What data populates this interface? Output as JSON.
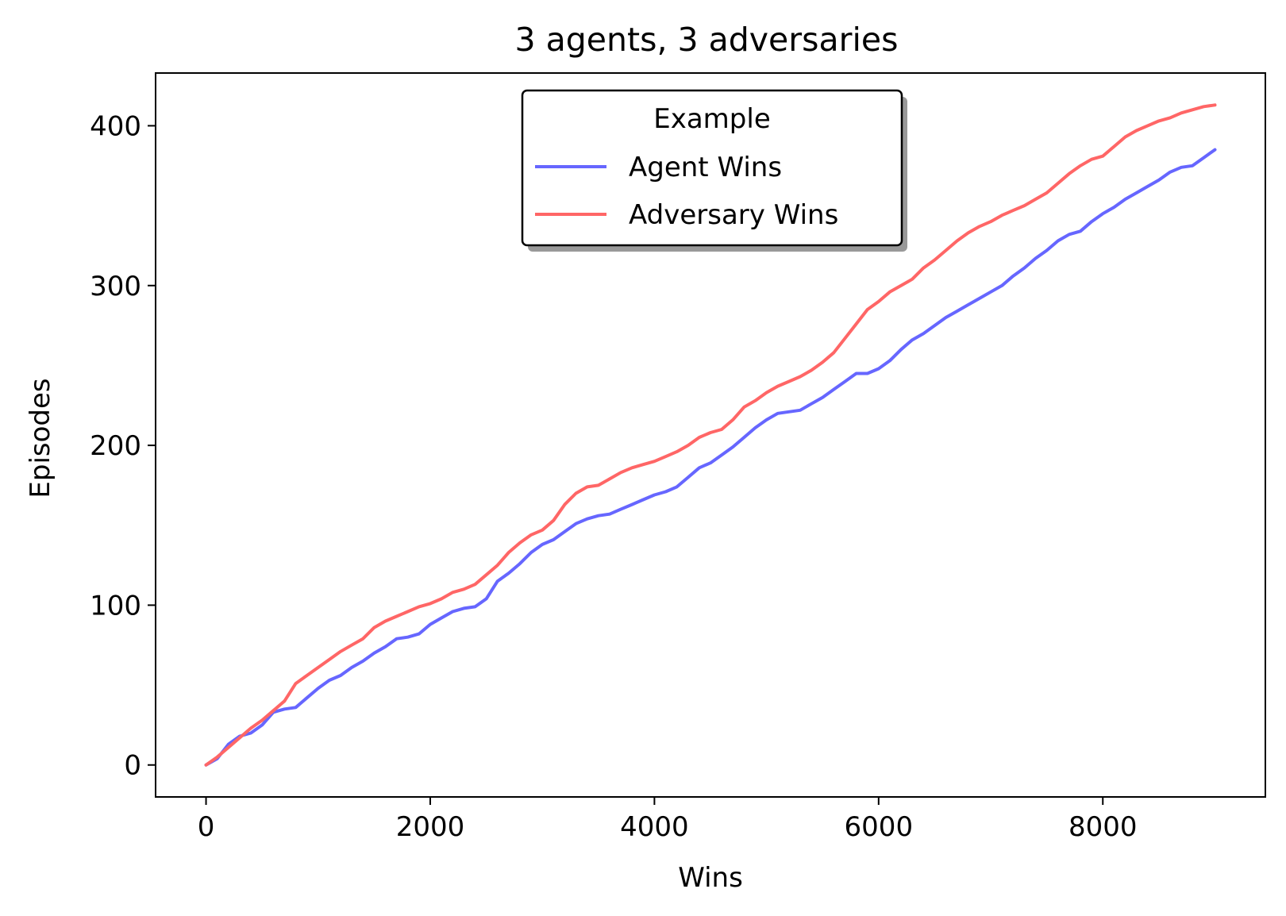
{
  "chart_data": {
    "type": "line",
    "title": "3 agents, 3 adversaries",
    "xlabel": "Wins",
    "ylabel": "Episodes",
    "xlim": [
      -450,
      9450
    ],
    "ylim": [
      -20,
      433
    ],
    "xticks": [
      0,
      2000,
      4000,
      6000,
      8000
    ],
    "yticks": [
      0,
      100,
      200,
      300,
      400
    ],
    "grid": false,
    "legend": {
      "title": "Example",
      "position": "top-center"
    },
    "series": [
      {
        "name": "Agent Wins",
        "color": "#6666ff",
        "x": [
          0,
          100,
          200,
          300,
          400,
          500,
          600,
          700,
          800,
          900,
          1000,
          1100,
          1200,
          1300,
          1400,
          1500,
          1600,
          1700,
          1800,
          1900,
          2000,
          2100,
          2200,
          2300,
          2400,
          2500,
          2600,
          2700,
          2800,
          2900,
          3000,
          3100,
          3200,
          3300,
          3400,
          3500,
          3600,
          3700,
          3800,
          3900,
          4000,
          4100,
          4200,
          4300,
          4400,
          4500,
          4600,
          4700,
          4800,
          4900,
          5000,
          5100,
          5200,
          5300,
          5400,
          5500,
          5600,
          5700,
          5800,
          5900,
          6000,
          6100,
          6200,
          6300,
          6400,
          6500,
          6600,
          6700,
          6800,
          6900,
          7000,
          7100,
          7200,
          7300,
          7400,
          7500,
          7600,
          7700,
          7800,
          7900,
          8000,
          8100,
          8200,
          8300,
          8400,
          8500,
          8600,
          8700,
          8800,
          8900,
          9000
        ],
        "values": [
          0,
          4,
          13,
          18,
          20,
          25,
          33,
          35,
          36,
          42,
          48,
          53,
          56,
          61,
          65,
          70,
          74,
          79,
          80,
          82,
          88,
          92,
          96,
          98,
          99,
          104,
          115,
          120,
          126,
          133,
          138,
          141,
          146,
          151,
          154,
          156,
          157,
          160,
          163,
          166,
          169,
          171,
          174,
          180,
          186,
          189,
          194,
          199,
          205,
          211,
          216,
          220,
          221,
          222,
          226,
          230,
          235,
          240,
          245,
          245,
          248,
          253,
          260,
          266,
          270,
          275,
          280,
          284,
          288,
          292,
          296,
          300,
          306,
          311,
          317,
          322,
          328,
          332,
          334,
          340,
          345,
          349,
          354,
          358,
          362,
          366,
          371,
          374,
          375,
          380,
          385
        ]
      },
      {
        "name": "Adversary Wins",
        "color": "#ff6666",
        "x": [
          0,
          100,
          200,
          300,
          400,
          500,
          600,
          700,
          800,
          900,
          1000,
          1100,
          1200,
          1300,
          1400,
          1500,
          1600,
          1700,
          1800,
          1900,
          2000,
          2100,
          2200,
          2300,
          2400,
          2500,
          2600,
          2700,
          2800,
          2900,
          3000,
          3100,
          3200,
          3300,
          3400,
          3500,
          3600,
          3700,
          3800,
          3900,
          4000,
          4100,
          4200,
          4300,
          4400,
          4500,
          4600,
          4700,
          4800,
          4900,
          5000,
          5100,
          5200,
          5300,
          5400,
          5500,
          5600,
          5700,
          5800,
          5900,
          6000,
          6100,
          6200,
          6300,
          6400,
          6500,
          6600,
          6700,
          6800,
          6900,
          7000,
          7100,
          7200,
          7300,
          7400,
          7500,
          7600,
          7700,
          7800,
          7900,
          8000,
          8100,
          8200,
          8300,
          8400,
          8500,
          8600,
          8700,
          8800,
          8900,
          9000
        ],
        "values": [
          0,
          5,
          11,
          17,
          23,
          28,
          34,
          40,
          51,
          56,
          61,
          66,
          71,
          75,
          79,
          86,
          90,
          93,
          96,
          99,
          101,
          104,
          108,
          110,
          113,
          119,
          125,
          133,
          139,
          144,
          147,
          153,
          163,
          170,
          174,
          175,
          179,
          183,
          186,
          188,
          190,
          193,
          196,
          200,
          205,
          208,
          210,
          216,
          224,
          228,
          233,
          237,
          240,
          243,
          247,
          252,
          258,
          267,
          276,
          285,
          290,
          296,
          300,
          304,
          311,
          316,
          322,
          328,
          333,
          337,
          340,
          344,
          347,
          350,
          354,
          358,
          364,
          370,
          375,
          379,
          381,
          387,
          393,
          397,
          400,
          403,
          405,
          408,
          410,
          412,
          413
        ]
      }
    ]
  }
}
